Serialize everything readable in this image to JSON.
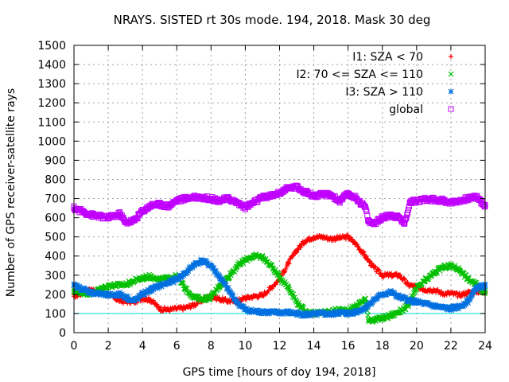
{
  "chart_data": {
    "type": "scatter",
    "title": "NRAYS. SISTED rt 30s mode. 194, 2018. Mask 30 deg",
    "xlabel": "GPS time [hours of doy 194, 2018]",
    "ylabel": "Number of GPS receiver-satellite rays",
    "xlim": [
      0,
      24
    ],
    "ylim": [
      0,
      1500
    ],
    "xticks": [
      0,
      2,
      4,
      6,
      8,
      10,
      12,
      14,
      16,
      18,
      20,
      22,
      24
    ],
    "yticks": [
      0,
      100,
      200,
      300,
      400,
      500,
      600,
      700,
      800,
      900,
      1000,
      1100,
      1200,
      1300,
      1400,
      1500
    ],
    "grid": true,
    "legend_position": "top-right",
    "reference_line": {
      "y": 100,
      "color": "#00e0e0"
    },
    "series": [
      {
        "name": "I1: SZA < 70",
        "marker": "+",
        "color": "#ff0000",
        "x": [
          0,
          1,
          2,
          2.7,
          3.5,
          4,
          4.5,
          5,
          5.5,
          6,
          6.5,
          7,
          7.5,
          8,
          8.5,
          9,
          9.5,
          10,
          10.5,
          11,
          11.5,
          12,
          12.5,
          13,
          13.5,
          14,
          14.5,
          15,
          15.5,
          16,
          16.5,
          17,
          17.5,
          18,
          18.5,
          19,
          19.5,
          20,
          20.5,
          21,
          21.5,
          22,
          22.5,
          23,
          23.5,
          24
        ],
        "values": [
          190,
          225,
          200,
          165,
          160,
          180,
          170,
          125,
          120,
          125,
          130,
          145,
          170,
          190,
          175,
          165,
          165,
          180,
          190,
          195,
          235,
          280,
          360,
          430,
          480,
          500,
          500,
          490,
          495,
          500,
          460,
          400,
          340,
          300,
          300,
          300,
          250,
          240,
          225,
          225,
          205,
          205,
          195,
          210,
          215,
          215
        ]
      },
      {
        "name": "I2: 70 <= SZA <= 110",
        "marker": "x",
        "color": "#00c000",
        "x": [
          0,
          1,
          2,
          3,
          3.5,
          4,
          4.5,
          5,
          5.5,
          6,
          6.5,
          7,
          7.5,
          8,
          8.5,
          9,
          9.5,
          10,
          10.5,
          11,
          11.5,
          12,
          12.5,
          13,
          13.5,
          14,
          14.5,
          15,
          15.5,
          16,
          16.5,
          17,
          17.2,
          17.5,
          18,
          18.5,
          19,
          19.5,
          20,
          20.5,
          21,
          21.5,
          22,
          22.5,
          23,
          23.5,
          24
        ],
        "values": [
          215,
          205,
          245,
          250,
          270,
          285,
          295,
          275,
          285,
          295,
          230,
          185,
          175,
          185,
          245,
          290,
          345,
          380,
          400,
          395,
          350,
          290,
          240,
          160,
          110,
          100,
          105,
          110,
          120,
          115,
          140,
          175,
          70,
          65,
          75,
          90,
          110,
          140,
          230,
          270,
          310,
          340,
          350,
          330,
          280,
          250,
          210
        ]
      },
      {
        "name": "I3: SZA > 110",
        "marker": "*",
        "color": "#0070e0",
        "x": [
          0,
          1,
          2,
          2.7,
          3.5,
          4,
          4.5,
          5,
          5.5,
          6,
          6.5,
          7,
          7.5,
          8,
          8.5,
          9,
          9.5,
          10,
          10.5,
          11,
          11.5,
          12,
          12.5,
          13,
          13.5,
          14,
          14.5,
          15,
          15.5,
          16,
          16.5,
          17,
          17.5,
          18,
          18.5,
          19,
          19.5,
          20,
          20.5,
          21,
          21.5,
          22,
          22.5,
          23,
          23.5,
          24
        ],
        "values": [
          245,
          210,
          195,
          200,
          165,
          200,
          225,
          245,
          260,
          280,
          310,
          355,
          375,
          350,
          290,
          225,
          160,
          120,
          110,
          110,
          105,
          105,
          105,
          100,
          95,
          95,
          100,
          95,
          105,
          100,
          110,
          130,
          170,
          200,
          210,
          185,
          170,
          160,
          150,
          140,
          130,
          125,
          135,
          165,
          235,
          245
        ]
      },
      {
        "name": "global",
        "marker": "square",
        "color": "#c000ff",
        "x": [
          0,
          1,
          2,
          2.7,
          3,
          3.5,
          4,
          4.5,
          5,
          5.5,
          6,
          6.5,
          7,
          7.5,
          8,
          8.5,
          9,
          9.5,
          10,
          10.5,
          11,
          11.5,
          12,
          12.5,
          13,
          13.5,
          14,
          14.5,
          15,
          15.5,
          16,
          16.5,
          17,
          17.2,
          17.5,
          18,
          18.5,
          19,
          19.3,
          19.6,
          20,
          20.5,
          21,
          21.5,
          22,
          22.5,
          23,
          23.5,
          24
        ],
        "values": [
          650,
          615,
          600,
          620,
          575,
          585,
          635,
          665,
          670,
          660,
          690,
          700,
          710,
          705,
          700,
          690,
          700,
          680,
          655,
          680,
          705,
          715,
          730,
          755,
          760,
          735,
          715,
          720,
          720,
          685,
          725,
          700,
          655,
          580,
          570,
          600,
          615,
          600,
          570,
          680,
          690,
          695,
          695,
          690,
          680,
          690,
          700,
          710,
          660
        ]
      }
    ]
  }
}
